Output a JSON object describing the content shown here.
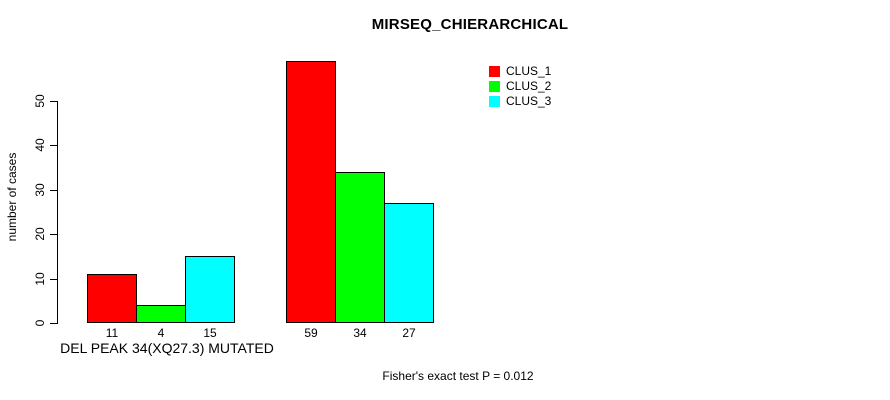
{
  "chart_data": {
    "type": "bar",
    "title": "MIRSEQ_CHIERARCHICAL",
    "ylabel": "number of cases",
    "xlabel": "DEL PEAK 34(XQ27.3) MUTATED",
    "annotation": "Fisher's exact test P = 0.012",
    "ylim": [
      0,
      50
    ],
    "yticks": [
      0,
      10,
      20,
      30,
      40,
      50
    ],
    "grid": false,
    "legend_position": "top-right",
    "num_groups": 2,
    "series": [
      {
        "name": "CLUS_1",
        "color": "#ff0000",
        "values": [
          11,
          59
        ]
      },
      {
        "name": "CLUS_2",
        "color": "#00ff00",
        "values": [
          4,
          34
        ]
      },
      {
        "name": "CLUS_3",
        "color": "#00ffff",
        "values": [
          15,
          27
        ]
      }
    ]
  }
}
